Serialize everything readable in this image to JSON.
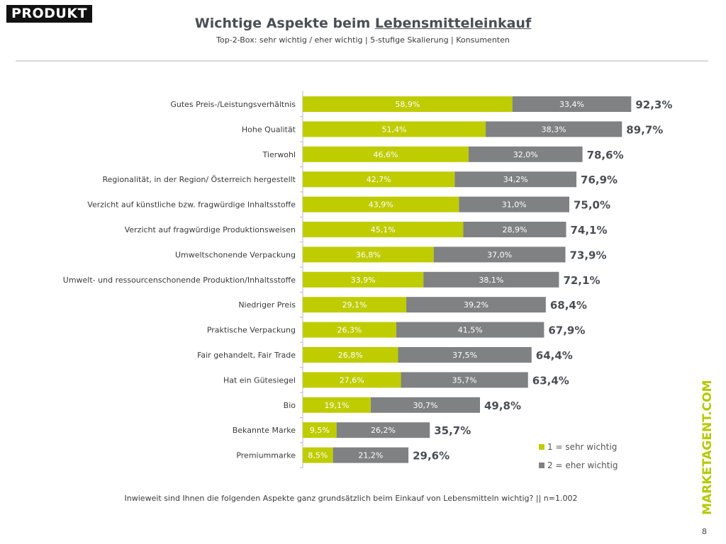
{
  "logo": "PRODUKT",
  "brand": "MARKETAGENT.COM",
  "page_number": "8",
  "question": "Inwieweit sind Ihnen die folgenden Aspekte ganz grundsätzlich beim Einkauf von Lebensmitteln wichtig? || n=1.002",
  "colors": {
    "sehr": "#bfcc00",
    "eher": "#7f8183"
  },
  "chart_data": {
    "type": "bar",
    "orientation": "horizontal",
    "stacked": true,
    "title_part1": "Wichtige Aspekte beim ",
    "title_part2": "Lebensmitteleinkauf",
    "subtitle": "Top-2-Box: sehr wichtig / eher wichtig | 5-stufige Skalierung | Konsumenten",
    "legend_placement": "bottom-right",
    "categories": [
      "Gutes Preis-/Leistungsverhältnis",
      "Hohe Qualität",
      "Tierwohl",
      "Regionalität, in der Region/ Österreich hergestellt",
      "Verzicht auf künstliche bzw. fragwürdige Inhaltsstoffe",
      "Verzicht auf fragwürdige Produktionsweisen",
      "Umweltschonende Verpackung",
      "Umwelt- und ressourcenschonende Produktion/Inhaltsstoffe",
      "Niedriger Preis",
      "Praktische Verpackung",
      "Fair gehandelt, Fair Trade",
      "Hat ein Gütesiegel",
      "Bio",
      "Bekannte Marke",
      "Premiummarke"
    ],
    "series": [
      {
        "name": "1 = sehr wichtig",
        "values": [
          58.9,
          51.4,
          46.6,
          42.7,
          43.9,
          45.1,
          36.8,
          33.9,
          29.1,
          26.3,
          26.8,
          27.6,
          19.1,
          9.5,
          8.5
        ]
      },
      {
        "name": "2 = eher wichtig",
        "values": [
          33.4,
          38.3,
          32.0,
          34.2,
          31.0,
          28.9,
          37.0,
          38.1,
          39.2,
          41.5,
          37.5,
          35.7,
          30.7,
          26.2,
          21.2
        ]
      }
    ],
    "totals": [
      92.3,
      89.7,
      78.6,
      76.9,
      75.0,
      74.1,
      73.9,
      72.1,
      68.4,
      67.9,
      64.4,
      63.4,
      49.8,
      35.7,
      29.6
    ]
  }
}
